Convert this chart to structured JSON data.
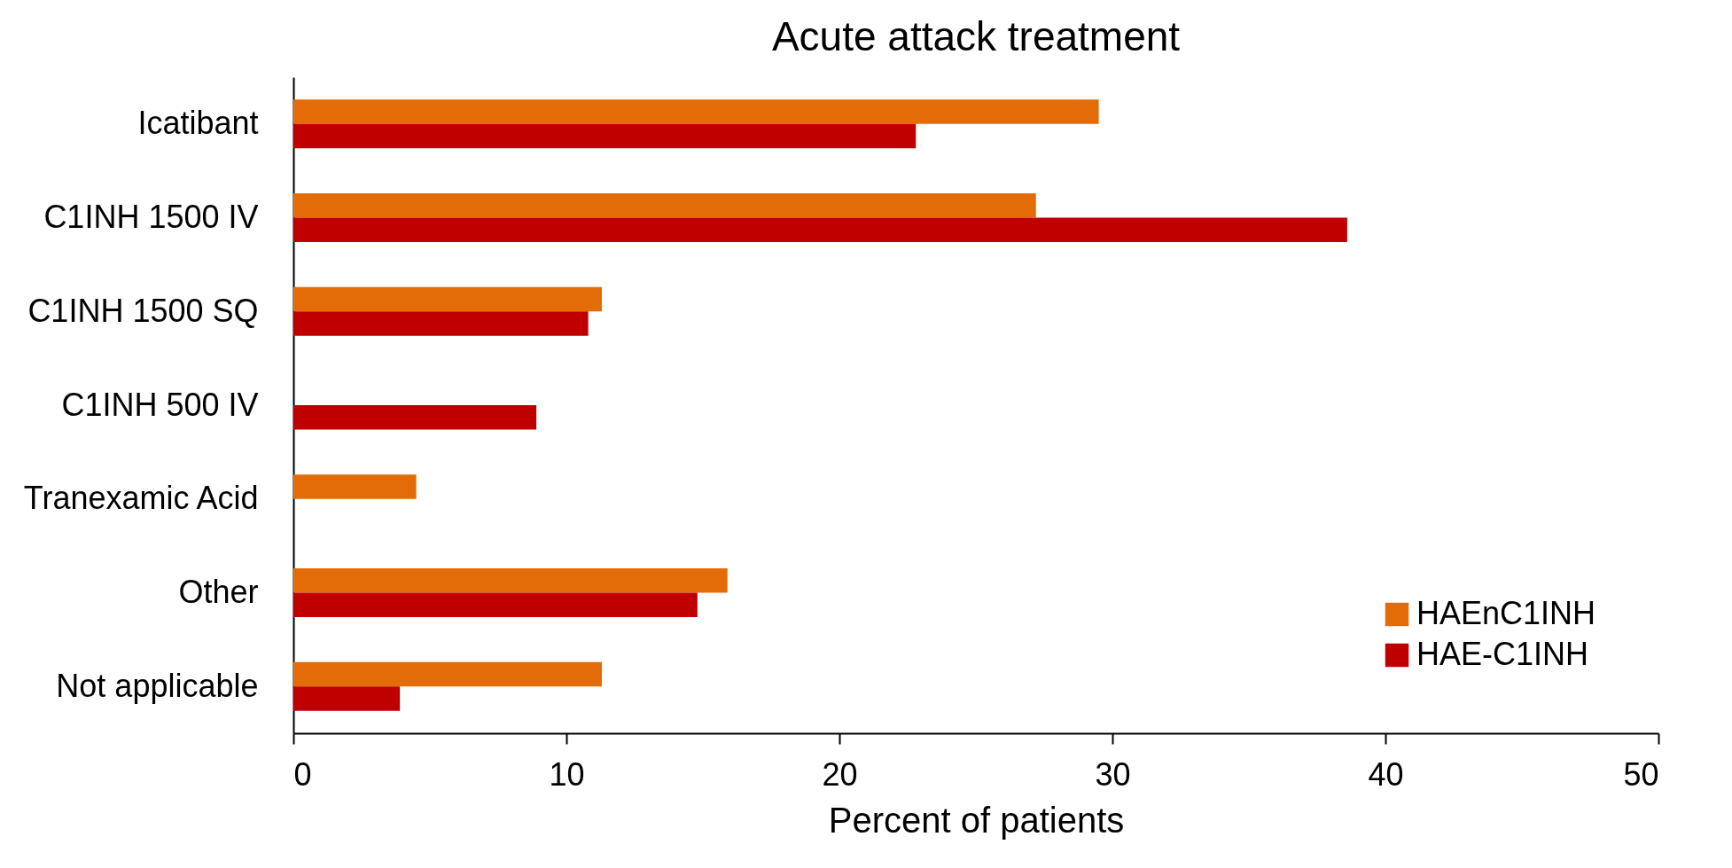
{
  "chart_data": {
    "type": "bar",
    "orientation": "horizontal",
    "title": "Acute attack treatment",
    "xlabel": "Percent of patients",
    "categories": [
      "Icatibant",
      "C1INH  1500 IV",
      "C1INH  1500 SQ",
      "C1INH  500 IV",
      "Tranexamic Acid",
      "Other",
      "Not applicable"
    ],
    "series": [
      {
        "name": "HAEnC1INH",
        "color": "#e36c09",
        "values": [
          29.5,
          27.2,
          11.3,
          null,
          4.5,
          15.9,
          11.3
        ]
      },
      {
        "name": "HAE-C1INH",
        "color": "#c00000",
        "values": [
          22.8,
          38.6,
          10.8,
          8.9,
          null,
          14.8,
          3.9
        ]
      }
    ],
    "xlim": [
      0,
      50
    ],
    "xticks": [
      0,
      10,
      20,
      30,
      40,
      50
    ],
    "grid": false,
    "legend": "bottom right"
  }
}
